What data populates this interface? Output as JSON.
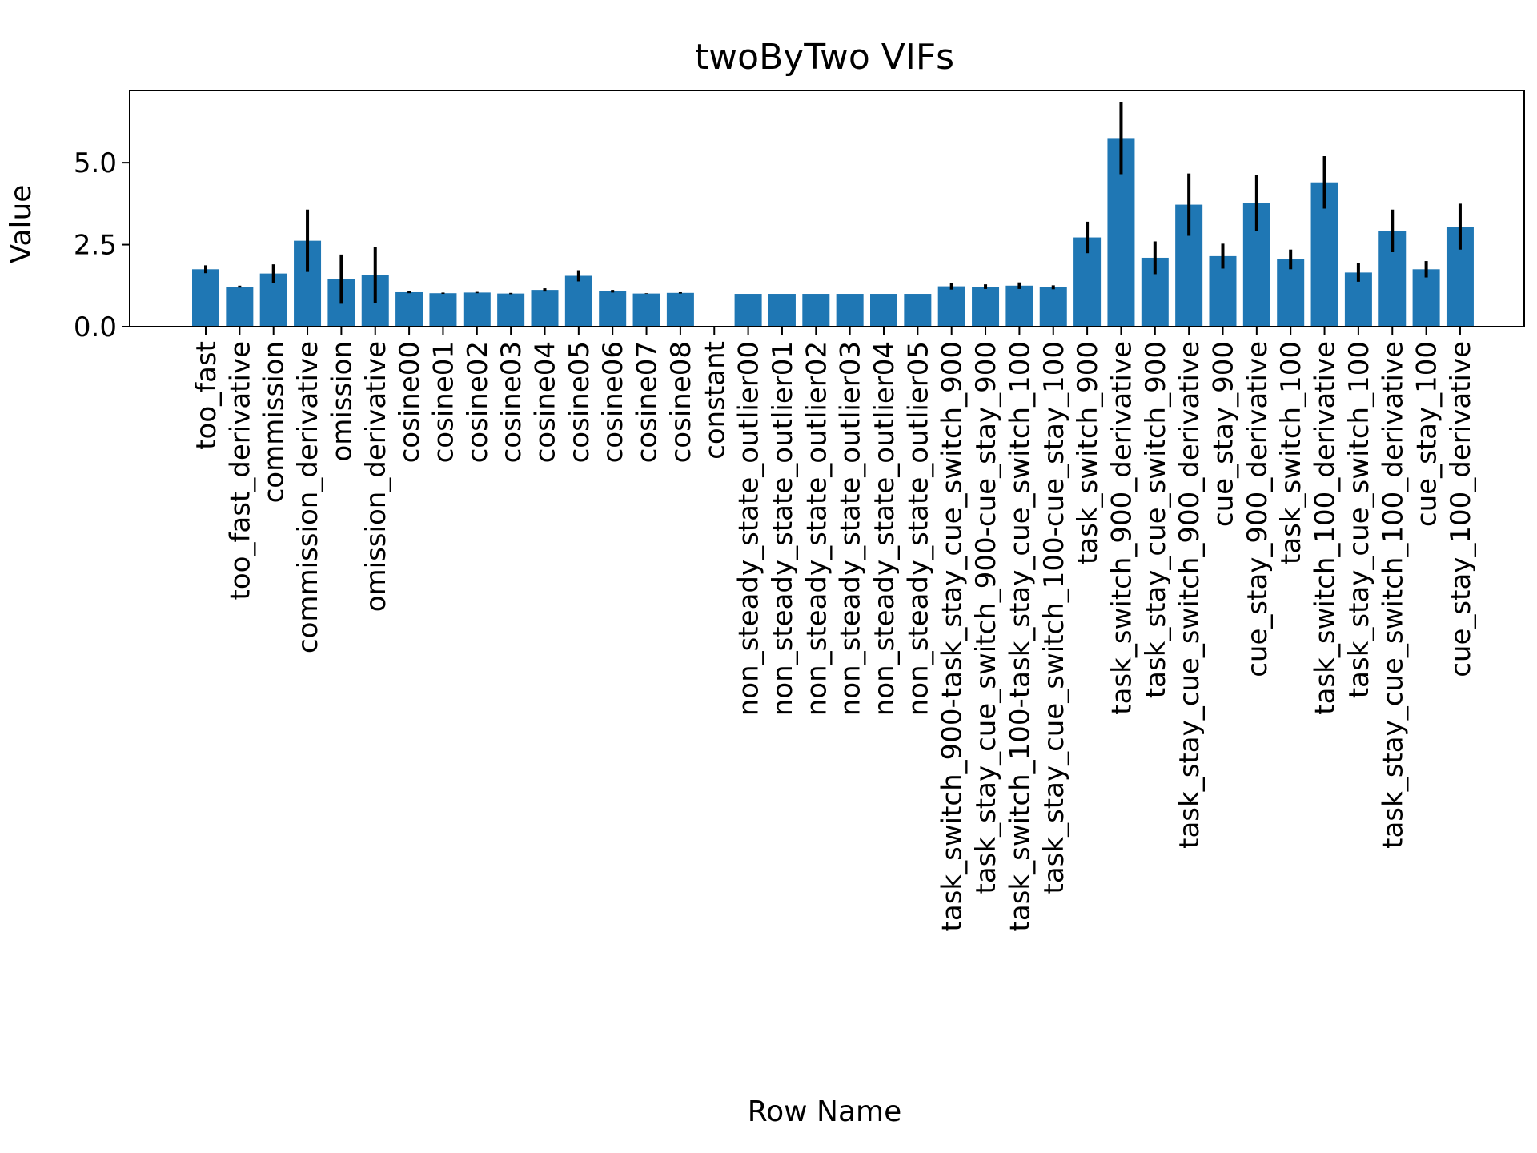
{
  "chart_data": {
    "type": "bar",
    "title": "twoByTwo VIFs",
    "xlabel": "Row Name",
    "ylabel": "Value",
    "ylim": [
      0,
      7.2
    ],
    "yticks": [
      "0.0",
      "2.5",
      "5.0"
    ],
    "ytick_values": [
      0,
      2.5,
      5.0
    ],
    "bar_color": "#1f77b4",
    "error_color": "#000000",
    "categories": [
      "too_fast",
      "too_fast_derivative",
      "commission",
      "commission_derivative",
      "omission",
      "omission_derivative",
      "cosine00",
      "cosine01",
      "cosine02",
      "cosine03",
      "cosine04",
      "cosine05",
      "cosine06",
      "cosine07",
      "cosine08",
      "constant",
      "non_steady_state_outlier00",
      "non_steady_state_outlier01",
      "non_steady_state_outlier02",
      "non_steady_state_outlier03",
      "non_steady_state_outlier04",
      "non_steady_state_outlier05",
      "task_switch_900-task_stay_cue_switch_900",
      "task_stay_cue_switch_900-cue_stay_900",
      "task_switch_100-task_stay_cue_switch_100",
      "task_stay_cue_switch_100-cue_stay_100",
      "task_switch_900",
      "task_switch_900_derivative",
      "task_stay_cue_switch_900",
      "task_stay_cue_switch_900_derivative",
      "cue_stay_900",
      "cue_stay_900_derivative",
      "task_switch_100",
      "task_switch_100_derivative",
      "task_stay_cue_switch_100",
      "task_stay_cue_switch_100_derivative",
      "cue_stay_100",
      "cue_stay_100_derivative"
    ],
    "values": [
      1.75,
      1.22,
      1.62,
      2.62,
      1.45,
      1.57,
      1.05,
      1.02,
      1.04,
      1.01,
      1.12,
      1.55,
      1.08,
      1.01,
      1.03,
      0,
      1.0,
      1.0,
      1.0,
      1.0,
      1.0,
      1.0,
      1.23,
      1.22,
      1.25,
      1.2,
      2.72,
      5.75,
      2.1,
      3.72,
      2.15,
      3.77,
      2.05,
      4.4,
      1.65,
      2.92,
      1.75,
      3.05
    ],
    "errors": [
      0.12,
      0.03,
      0.28,
      0.95,
      0.75,
      0.85,
      0.03,
      0.02,
      0.02,
      0.02,
      0.05,
      0.17,
      0.04,
      0.01,
      0.02,
      0,
      0.0,
      0.0,
      0.0,
      0.0,
      0.0,
      0.0,
      0.1,
      0.07,
      0.1,
      0.06,
      0.48,
      1.1,
      0.5,
      0.95,
      0.38,
      0.85,
      0.3,
      0.8,
      0.28,
      0.65,
      0.25,
      0.7
    ]
  }
}
